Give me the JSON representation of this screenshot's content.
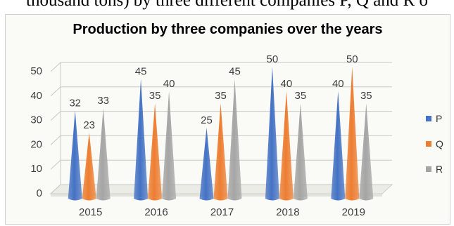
{
  "caption": "thousand tons) by three different companies P, Q and R o",
  "chart_data": {
    "type": "bar",
    "title": "Production by three companies over the years",
    "categories": [
      "2015",
      "2016",
      "2017",
      "2018",
      "2019"
    ],
    "series": [
      {
        "name": "P",
        "values": [
          32,
          45,
          25,
          50,
          40
        ],
        "color": "#4472c4"
      },
      {
        "name": "Q",
        "values": [
          23,
          35,
          35,
          40,
          50
        ],
        "color": "#ed7d31"
      },
      {
        "name": "R",
        "values": [
          33,
          40,
          45,
          35,
          35
        ],
        "color": "#a5a5a5"
      }
    ],
    "ylim": [
      0,
      50
    ],
    "yticks": [
      "0",
      "10",
      "20",
      "30",
      "40",
      "50"
    ],
    "grid": true,
    "legend_position": "right",
    "mark_shape": "cone"
  }
}
